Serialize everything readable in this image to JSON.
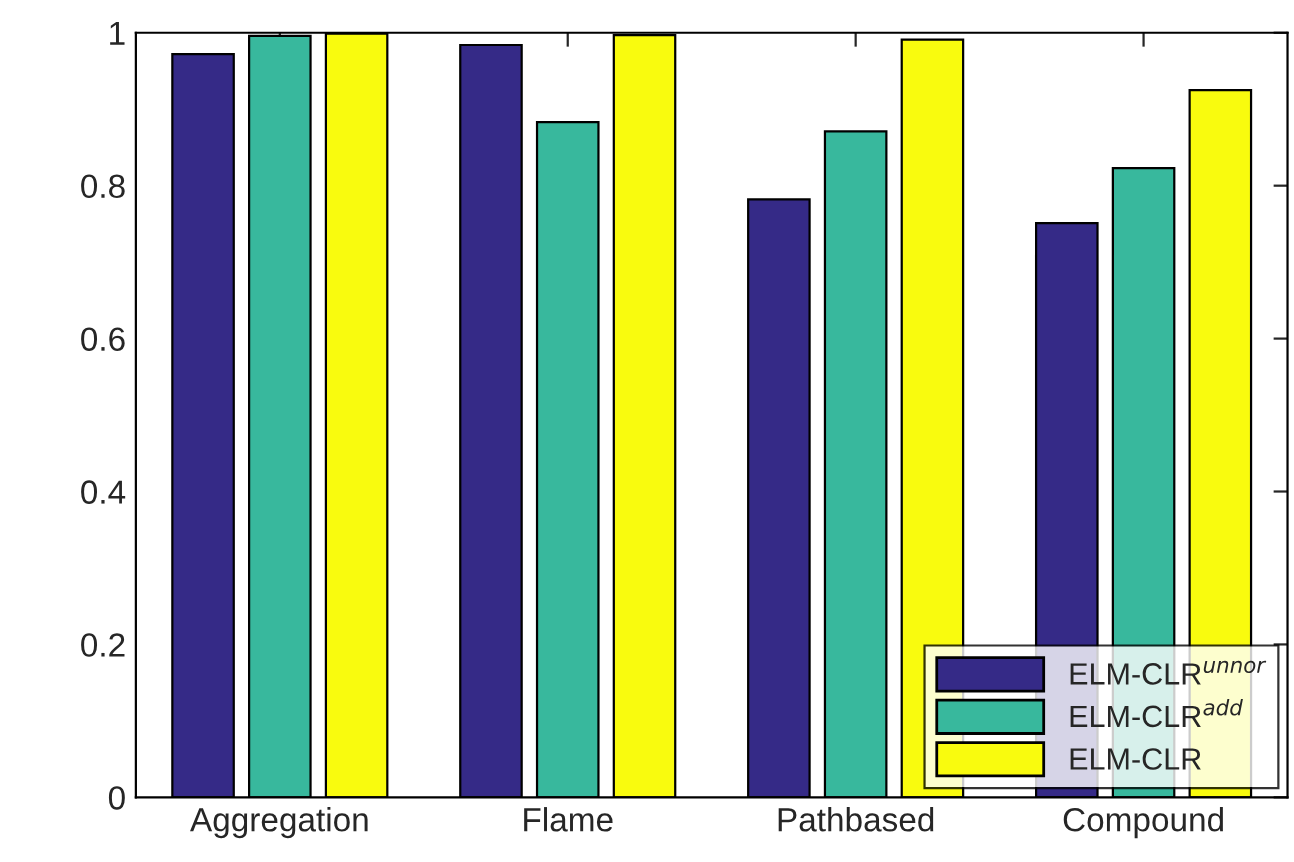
{
  "chart_data": {
    "type": "bar",
    "categories": [
      "Aggregation",
      "Flame",
      "Pathbased",
      "Compound"
    ],
    "series": [
      {
        "name": "ELM-CLR$^{unnor}$",
        "color": "#352a87",
        "values": [
          0.972,
          0.984,
          0.782,
          0.751
        ]
      },
      {
        "name": "ELM-CLR$^{add}$",
        "color": "#38b89d",
        "values": [
          0.996,
          0.883,
          0.871,
          0.823
        ]
      },
      {
        "name": "ELM-CLR",
        "color": "#f9fb0e",
        "values": [
          0.999,
          0.997,
          0.991,
          0.925
        ]
      }
    ],
    "ylim": [
      0,
      1
    ],
    "yticks": [
      0,
      0.2,
      0.4,
      0.6,
      0.8,
      1
    ],
    "grid": false,
    "legend": "bottom right"
  }
}
